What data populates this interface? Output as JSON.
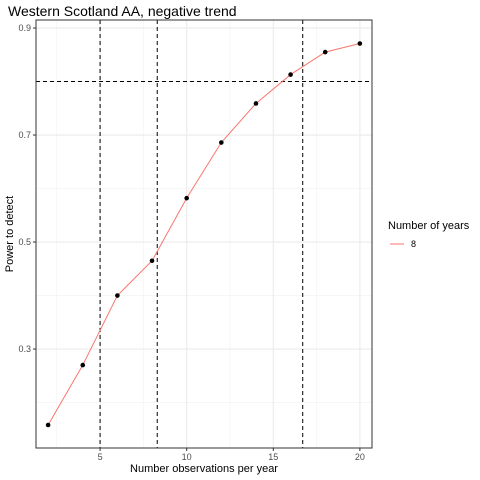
{
  "chart_data": {
    "type": "line",
    "title": "Western Scotland AA, negative trend",
    "xlabel": "Number observations per year",
    "ylabel": "Power to detect",
    "xlim": [
      1.3,
      20.7
    ],
    "ylim": [
      0.115,
      0.915
    ],
    "x_ticks": [
      5,
      10,
      15,
      20
    ],
    "x_ticks_minor": [
      2.5,
      7.5,
      12.5,
      17.5
    ],
    "y_ticks": [
      0.3,
      0.5,
      0.7,
      0.9
    ],
    "y_ticks_minor": [
      0.2,
      0.4,
      0.6,
      0.8
    ],
    "y_tick_labels": [
      "0.3",
      "0.5",
      "0.7",
      "0.9"
    ],
    "x_tick_labels": [
      "5",
      "10",
      "15",
      "20"
    ],
    "series": [
      {
        "name": "8",
        "color": "#F8766D",
        "x": [
          2,
          4,
          6,
          8,
          10,
          12,
          14,
          16,
          18,
          20
        ],
        "y": [
          0.158,
          0.27,
          0.4,
          0.465,
          0.582,
          0.686,
          0.759,
          0.813,
          0.855,
          0.871
        ]
      }
    ],
    "reference_lines": {
      "vertical": [
        5,
        8.3,
        16.7
      ],
      "horizontal": [
        0.8
      ]
    },
    "legend": {
      "title": "Number of years",
      "placement": "right"
    },
    "grid": true,
    "theme": "bw"
  }
}
